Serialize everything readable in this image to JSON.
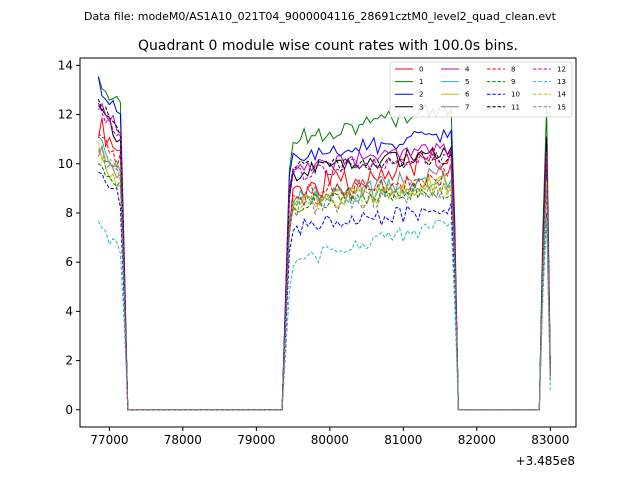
{
  "chart_data": {
    "type": "line",
    "suptitle": "Data file: modeM0/AS1A10_021T04_9000004116_28691cztM0_level2_quad_clean.evt",
    "title": "Quadrant 0 module wise count rates with 100.0s bins.",
    "xlabel": "",
    "ylabel": "",
    "x_offset_label": "+3.485e8",
    "xlim": [
      76600,
      83350
    ],
    "ylim": [
      -0.7,
      14.3
    ],
    "xticks": [
      77000,
      78000,
      79000,
      80000,
      81000,
      82000,
      83000
    ],
    "yticks": [
      0,
      2,
      4,
      6,
      8,
      10,
      12,
      14
    ],
    "xtick_labels": [
      "77000",
      "78000",
      "79000",
      "80000",
      "81000",
      "82000",
      "83000"
    ],
    "ytick_labels": [
      "0",
      "2",
      "4",
      "6",
      "8",
      "10",
      "12",
      "14"
    ],
    "legend_position": "upper right",
    "legend_columns": 4,
    "segments": [
      {
        "x_start": 76850,
        "x_end": 77150,
        "step": 50
      },
      {
        "x_start": 79450,
        "x_end": 81650,
        "step": 50
      },
      {
        "x_start": 82950,
        "x_end": 83000,
        "step": 50
      }
    ],
    "gap_points": [
      {
        "x": 77250,
        "value": 0
      },
      {
        "x": 77350,
        "value": 0
      },
      {
        "x": 79250,
        "value": 0
      },
      {
        "x": 79350,
        "value": 0
      },
      {
        "x": 81750,
        "value": 0
      },
      {
        "x": 81850,
        "value": 0
      },
      {
        "x": 82750,
        "value": 0
      },
      {
        "x": 82850,
        "value": 0
      }
    ],
    "series": [
      {
        "name": "0",
        "color": "#ff0000",
        "dashed": false,
        "start": 11.6,
        "plateau": 8.9,
        "plateau_end": 10.3,
        "end_peak": 10.2,
        "end_val": 1.5,
        "noise": 0.55
      },
      {
        "name": "1",
        "color": "#008000",
        "dashed": false,
        "start": 13.4,
        "plateau": 11.0,
        "plateau_end": 12.3,
        "end_peak": 12.3,
        "end_val": 1.8,
        "noise": 0.35
      },
      {
        "name": "2",
        "color": "#0000ff",
        "dashed": false,
        "start": 13.3,
        "plateau": 10.2,
        "plateau_end": 11.2,
        "end_peak": 11.0,
        "end_val": 1.7,
        "noise": 0.35
      },
      {
        "name": "3",
        "color": "#000000",
        "dashed": false,
        "start": 12.2,
        "plateau": 9.6,
        "plateau_end": 10.5,
        "end_peak": 11.1,
        "end_val": 1.6,
        "noise": 0.35
      },
      {
        "name": "4",
        "color": "#c000c0",
        "dashed": false,
        "start": 12.5,
        "plateau": 9.9,
        "plateau_end": 10.6,
        "end_peak": 10.5,
        "end_val": 1.6,
        "noise": 0.3
      },
      {
        "name": "5",
        "color": "#20c0a0",
        "dashed": false,
        "start": 10.8,
        "plateau": 8.5,
        "plateau_end": 9.3,
        "end_peak": 9.6,
        "end_val": 1.4,
        "noise": 0.4
      },
      {
        "name": "6",
        "color": "#c0c000",
        "dashed": false,
        "start": 10.3,
        "plateau": 8.3,
        "plateau_end": 9.2,
        "end_peak": 9.4,
        "end_val": 1.4,
        "noise": 0.4
      },
      {
        "name": "7",
        "color": "#808080",
        "dashed": false,
        "start": 10.6,
        "plateau": 8.6,
        "plateau_end": 9.6,
        "end_peak": 9.8,
        "end_val": 1.5,
        "noise": 0.4
      },
      {
        "name": "8",
        "color": "#ff0000",
        "dashed": true,
        "start": 11.2,
        "plateau": 8.6,
        "plateau_end": 9.6,
        "end_peak": 10.2,
        "end_val": 1.5,
        "noise": 0.45
      },
      {
        "name": "9",
        "color": "#008000",
        "dashed": true,
        "start": 10.2,
        "plateau": 8.3,
        "plateau_end": 9.0,
        "end_peak": 9.6,
        "end_val": 1.4,
        "noise": 0.4
      },
      {
        "name": "10",
        "color": "#0000ff",
        "dashed": true,
        "start": 9.7,
        "plateau": 7.4,
        "plateau_end": 8.2,
        "end_peak": 8.0,
        "end_val": 1.2,
        "noise": 0.35
      },
      {
        "name": "11",
        "color": "#000000",
        "dashed": true,
        "start": 12.5,
        "plateau": 9.8,
        "plateau_end": 10.2,
        "end_peak": 10.4,
        "end_val": 1.5,
        "noise": 0.3
      },
      {
        "name": "12",
        "color": "#c000c0",
        "dashed": true,
        "start": 12.2,
        "plateau": 9.5,
        "plateau_end": 10.4,
        "end_peak": 10.5,
        "end_val": 1.6,
        "noise": 0.35
      },
      {
        "name": "13",
        "color": "#20c0c0",
        "dashed": true,
        "start": 7.6,
        "plateau": 6.0,
        "plateau_end": 7.6,
        "end_peak": 7.8,
        "end_val": 0.8,
        "noise": 0.3
      },
      {
        "name": "14",
        "color": "#c0c000",
        "dashed": true,
        "start": 10.7,
        "plateau": 8.3,
        "plateau_end": 9.1,
        "end_peak": 9.3,
        "end_val": 1.3,
        "noise": 0.4
      },
      {
        "name": "15",
        "color": "#808080",
        "dashed": true,
        "start": 10.6,
        "plateau": 8.2,
        "plateau_end": 9.0,
        "end_peak": 9.0,
        "end_val": 1.2,
        "noise": 0.4
      }
    ]
  }
}
